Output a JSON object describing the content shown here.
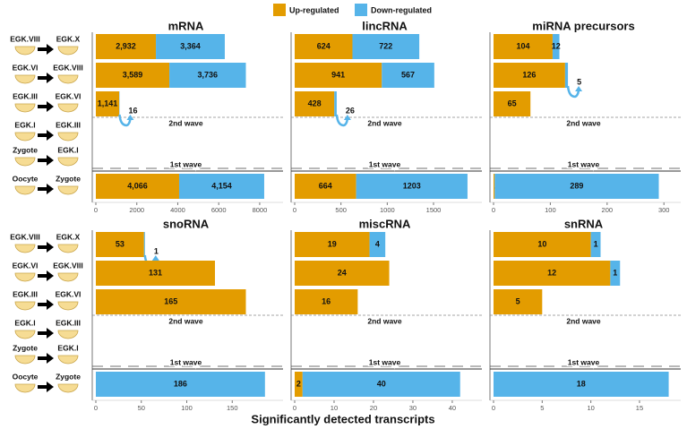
{
  "stages": [
    {
      "from": "EGK.VIII",
      "to": "EGK.X"
    },
    {
      "from": "EGK.VI",
      "to": "EGK.VIII"
    },
    {
      "from": "EGK.III",
      "to": "EGK.VI"
    },
    {
      "from": "EGK.I",
      "to": "EGK.III"
    },
    {
      "from": "Zygote",
      "to": "EGK.I"
    },
    {
      "from": "Oocyte",
      "to": "Zygote"
    }
  ],
  "wave_labels": {
    "second": "2nd wave",
    "first": "1st wave"
  },
  "xlabel": "Significantly detected transcripts",
  "chart_data": [
    {
      "type": "bar",
      "orientation": "horizontal",
      "stacked": true,
      "title": "mRNA",
      "xlim": [
        0,
        8790
      ],
      "xticks": [
        0,
        2000,
        4000,
        6000,
        8000
      ],
      "series": [
        {
          "name": "Up-regulated",
          "color": "#e39c00",
          "values": [
            2932,
            3589,
            1141,
            null,
            null,
            4066
          ],
          "value_labels": [
            "2,932",
            "3,589",
            "1,141",
            null,
            null,
            "4,066"
          ]
        },
        {
          "name": "Down-regulated",
          "color": "#56b4e9",
          "values": [
            3364,
            3736,
            16,
            null,
            null,
            4154
          ],
          "value_labels": [
            "3,364",
            "3,736",
            "16",
            null,
            null,
            "4,154"
          ]
        }
      ]
    },
    {
      "type": "bar",
      "orientation": "horizontal",
      "stacked": true,
      "title": "lincRNA",
      "xlim": [
        0,
        1945
      ],
      "xticks": [
        0,
        500,
        1000,
        1500
      ],
      "series": [
        {
          "name": "Up-regulated",
          "color": "#e39c00",
          "values": [
            624,
            941,
            428,
            null,
            null,
            664
          ]
        },
        {
          "name": "Down-regulated",
          "color": "#56b4e9",
          "values": [
            722,
            567,
            26,
            null,
            null,
            1203
          ]
        }
      ]
    },
    {
      "type": "bar",
      "orientation": "horizontal",
      "stacked": true,
      "title": "miRNA precursors",
      "xlim": [
        0,
        317
      ],
      "xticks": [
        0,
        100,
        200,
        300
      ],
      "series": [
        {
          "name": "Up-regulated",
          "color": "#e39c00",
          "values": [
            104,
            126,
            65,
            null,
            null,
            2
          ]
        },
        {
          "name": "Down-regulated",
          "color": "#56b4e9",
          "values": [
            12,
            5,
            null,
            null,
            null,
            289
          ]
        }
      ]
    },
    {
      "type": "bar",
      "orientation": "horizontal",
      "stacked": true,
      "title": "snoRNA",
      "xlim": [
        0,
        198
      ],
      "xticks": [
        0,
        50,
        100,
        150
      ],
      "series": [
        {
          "name": "Up-regulated",
          "color": "#e39c00",
          "values": [
            53,
            131,
            165,
            null,
            null,
            null
          ]
        },
        {
          "name": "Down-regulated",
          "color": "#56b4e9",
          "values": [
            1,
            null,
            null,
            null,
            null,
            186
          ]
        }
      ]
    },
    {
      "type": "bar",
      "orientation": "horizontal",
      "stacked": true,
      "title": "miscRNA",
      "xlim": [
        0,
        45.7
      ],
      "xticks": [
        0,
        10,
        20,
        30,
        40
      ],
      "series": [
        {
          "name": "Up-regulated",
          "color": "#e39c00",
          "values": [
            19,
            24,
            16,
            null,
            null,
            2
          ]
        },
        {
          "name": "Down-regulated",
          "color": "#56b4e9",
          "values": [
            4,
            null,
            null,
            null,
            null,
            40
          ]
        }
      ]
    },
    {
      "type": "bar",
      "orientation": "horizontal",
      "stacked": true,
      "title": "snRNA",
      "xlim": [
        0,
        18.5
      ],
      "xticks": [
        0,
        5,
        10,
        15
      ],
      "series": [
        {
          "name": "Up-regulated",
          "color": "#e39c00",
          "values": [
            10,
            12,
            5,
            null,
            null,
            null
          ]
        },
        {
          "name": "Down-regulated",
          "color": "#56b4e9",
          "values": [
            1,
            1,
            null,
            null,
            null,
            18
          ]
        }
      ]
    }
  ]
}
